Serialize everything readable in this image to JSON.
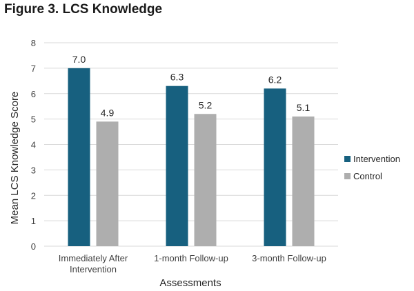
{
  "figure_title": "Figure 3. LCS Knowledge",
  "chart_data": {
    "type": "bar",
    "title": "Figure 3. LCS Knowledge",
    "categories": [
      [
        "Immediately After",
        "Intervention"
      ],
      [
        "1-month Follow-up"
      ],
      [
        "3-month Follow-up"
      ]
    ],
    "series": [
      {
        "name": "Intervention",
        "values": [
          7.0,
          6.3,
          6.2
        ],
        "color": "#17607f"
      },
      {
        "name": "Control",
        "values": [
          4.9,
          5.2,
          5.1
        ],
        "color": "#aeaeae"
      }
    ],
    "data_labels": [
      [
        "7.0",
        "6.3",
        "6.2"
      ],
      [
        "4.9",
        "5.2",
        "5.1"
      ]
    ],
    "xlabel": "Assessments",
    "ylabel": "Mean LCS Knowledge Score",
    "ylim": [
      0,
      8
    ],
    "yticks": [
      "0",
      "1",
      "2",
      "3",
      "4",
      "5",
      "6",
      "7",
      "8"
    ],
    "grid": true,
    "gridline_color": "#d9d9d9",
    "legend_position": "right"
  }
}
